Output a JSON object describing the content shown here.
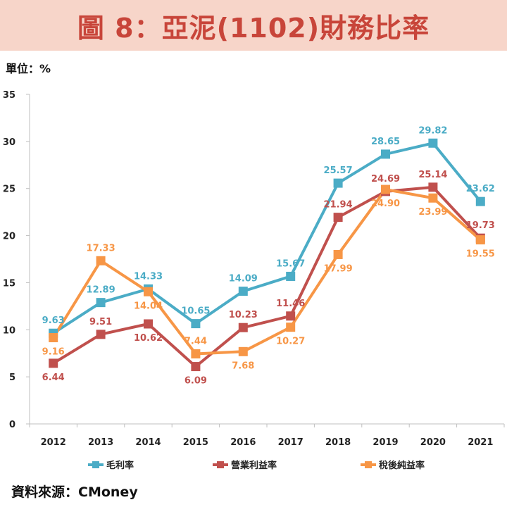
{
  "title": "圖 8：亞泥(1102)財務比率",
  "unit": "單位：%",
  "source": "資料來源：CMoney",
  "chart_data": {
    "type": "line",
    "title": "圖 8：亞泥(1102)財務比率",
    "xlabel": "",
    "ylabel": "單位：%",
    "ylim": [
      0,
      35
    ],
    "yticks": [
      "0",
      "5",
      "10",
      "15",
      "20",
      "25",
      "30",
      "35"
    ],
    "categories": [
      "2012",
      "2013",
      "2014",
      "2015",
      "2016",
      "2017",
      "2018",
      "2019",
      "2020",
      "2021"
    ],
    "legend_position": "bottom",
    "series": [
      {
        "name": "毛利率",
        "color": "#4bacc6",
        "values": [
          9.63,
          12.89,
          14.33,
          10.65,
          14.09,
          15.67,
          25.57,
          28.65,
          29.82,
          23.62
        ],
        "labels": [
          "9.63",
          "12.89",
          "14.33",
          "10.65",
          "14.09",
          "15.67",
          "25.57",
          "28.65",
          "29.82",
          "23.62"
        ]
      },
      {
        "name": "營業利益率",
        "color": "#c0504d",
        "values": [
          6.44,
          9.51,
          10.62,
          6.09,
          10.23,
          11.46,
          21.94,
          24.69,
          25.14,
          19.73
        ],
        "labels": [
          "6.44",
          "9.51",
          "10.62",
          "6.09",
          "10.23",
          "11.46",
          "21.94",
          "24.69",
          "25.14",
          "19.73"
        ]
      },
      {
        "name": "稅後純益率",
        "color": "#f79646",
        "values": [
          9.16,
          17.33,
          14.04,
          7.44,
          7.68,
          10.27,
          17.99,
          24.9,
          23.99,
          19.55
        ],
        "labels": [
          "9.16",
          "17.33",
          "14.04",
          "7.44",
          "7.68",
          "10.27",
          "17.99",
          "24.90",
          "23.99",
          "19.55"
        ]
      }
    ]
  }
}
